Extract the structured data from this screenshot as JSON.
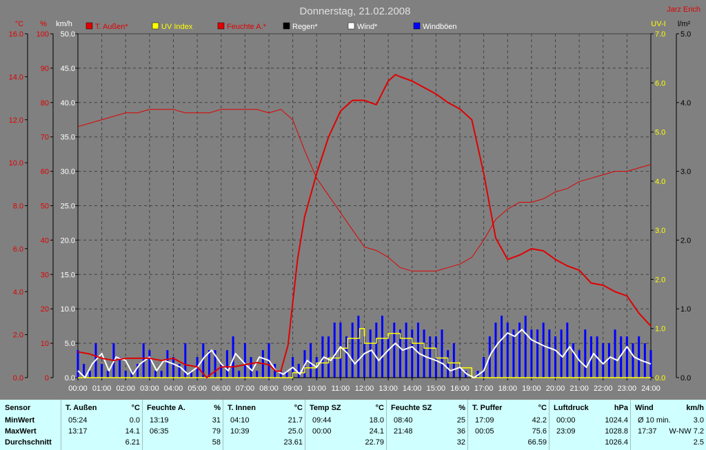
{
  "title": "Donnerstag, 21.02.2008",
  "author": "Jarz Erich",
  "legend": [
    {
      "label": "T. Außen*",
      "box": "#e00000",
      "color": "#e00000"
    },
    {
      "label": "UV Index",
      "box": "#ffff00",
      "color": "#ffff00"
    },
    {
      "label": "Feuchte A.*",
      "box": "#e00000",
      "color": "#e00000"
    },
    {
      "label": "Regen*",
      "box": "#000000",
      "color": "#ffffff"
    },
    {
      "label": "Wind*",
      "box": "#ffffff",
      "color": "#ffffff"
    },
    {
      "label": "Windböen",
      "box": "#0000ff",
      "color": "#ffffff"
    }
  ],
  "colors": {
    "background": "#808080",
    "plot": "#808080",
    "grid": "#404040",
    "temperature": "#e00000",
    "humidity": "#e00000",
    "uv": "#ffff00",
    "wind": "#ffffff",
    "gust": "#0000ff",
    "rain": "#000000",
    "stats_bg": "#cfffff"
  },
  "chart_data": {
    "type": "line",
    "title": "Donnerstag, 21.02.2008",
    "grid": true,
    "legend_position": "top",
    "x_ticks": [
      "00:00",
      "01:00",
      "02:00",
      "03:00",
      "04:00",
      "05:00",
      "06:00",
      "07:00",
      "08:00",
      "09:00",
      "10:00",
      "11:00",
      "12:00",
      "13:00",
      "14:00",
      "15:00",
      "16:00",
      "17:00",
      "18:00",
      "19:00",
      "20:00",
      "21:00",
      "22:00",
      "23:00",
      "24:00"
    ],
    "xlim": [
      0,
      24
    ],
    "axes": {
      "temp_c": {
        "label": "°C",
        "side": "left",
        "range": [
          0,
          16
        ],
        "ticks": [
          "0.0",
          "2.0",
          "4.0",
          "6.0",
          "8.0",
          "10.0",
          "12.0",
          "14.0",
          "16.0"
        ],
        "color": "#e00000"
      },
      "percent": {
        "label": "%",
        "side": "left",
        "range": [
          0,
          100
        ],
        "ticks": [
          "0",
          "10",
          "20",
          "30",
          "40",
          "50",
          "60",
          "70",
          "80",
          "90",
          "100"
        ],
        "color": "#e00000"
      },
      "kmh": {
        "label": "km/h",
        "side": "left",
        "range": [
          0,
          50
        ],
        "ticks": [
          "0.0",
          "5.0",
          "10.0",
          "15.0",
          "20.0",
          "25.0",
          "30.0",
          "35.0",
          "40.0",
          "45.0",
          "50.0"
        ],
        "color": "#ffffff"
      },
      "uv": {
        "label": "UV-I",
        "side": "right",
        "range": [
          0,
          7
        ],
        "ticks": [
          "0.0",
          "1.0",
          "2.0",
          "3.0",
          "4.0",
          "5.0",
          "6.0",
          "7.0"
        ],
        "color": "#ffff00"
      },
      "rain": {
        "label": "l/m²",
        "side": "right",
        "range": [
          0,
          5
        ],
        "ticks": [
          "0.0",
          "1.0",
          "2.0",
          "3.0",
          "4.0",
          "5.0"
        ],
        "color": "#000000"
      }
    },
    "series": [
      {
        "name": "T. Außen*",
        "axis": "temp_c",
        "color": "#e00000",
        "width": 2,
        "x": [
          0,
          0.5,
          1,
          1.5,
          2,
          2.5,
          3,
          3.5,
          4,
          4.5,
          5,
          5.4,
          5.5,
          6,
          6.5,
          7,
          7.5,
          8,
          8.3,
          8.5,
          8.8,
          9,
          9.2,
          9.5,
          10,
          10.5,
          11,
          11.5,
          12,
          12.5,
          13,
          13.3,
          13.5,
          14,
          14.5,
          15,
          15.5,
          16,
          16.5,
          17,
          17.5,
          18,
          18.5,
          19,
          19.5,
          20,
          20.5,
          21,
          21.5,
          22,
          22.5,
          23,
          23.5,
          24
        ],
        "y": [
          1.2,
          1.1,
          0.9,
          0.8,
          0.9,
          0.9,
          0.9,
          0.8,
          0.9,
          0.6,
          0.5,
          0.0,
          0.1,
          0.5,
          0.5,
          0.6,
          0.7,
          0.6,
          0.3,
          0.3,
          1.5,
          3.5,
          5.5,
          7.5,
          9.5,
          11.2,
          12.4,
          12.9,
          12.9,
          12.7,
          13.8,
          14.1,
          14.0,
          13.8,
          13.5,
          13.2,
          12.8,
          12.5,
          12.0,
          9.5,
          6.5,
          5.5,
          5.7,
          6.0,
          5.9,
          5.5,
          5.2,
          5.0,
          4.4,
          4.3,
          4.0,
          3.8,
          3.0,
          2.4
        ]
      },
      {
        "name": "Feuchte A.*",
        "axis": "percent",
        "color": "#e00000",
        "width": 1,
        "x": [
          0,
          0.5,
          1,
          1.5,
          2,
          2.5,
          3,
          3.5,
          4,
          4.5,
          5,
          5.5,
          6,
          6.5,
          7,
          7.5,
          8,
          8.5,
          9,
          9.5,
          10,
          10.5,
          11,
          11.5,
          12,
          12.5,
          13,
          13.5,
          14,
          14.5,
          15,
          15.5,
          16,
          16.5,
          17,
          17.5,
          18,
          18.5,
          19,
          19.5,
          20,
          20.5,
          21,
          21.5,
          22,
          22.5,
          23,
          23.5,
          24
        ],
        "y": [
          73,
          74,
          75,
          76,
          77,
          77,
          78,
          78,
          78,
          77,
          77,
          77,
          78,
          78,
          78,
          78,
          77,
          78,
          75,
          66,
          58,
          53,
          48,
          43,
          38,
          37,
          35,
          32,
          31,
          31,
          31,
          32,
          33,
          35,
          40,
          46,
          49,
          51,
          51,
          52,
          54,
          55,
          57,
          58,
          59,
          60,
          60,
          61,
          62
        ]
      },
      {
        "name": "UV Index",
        "axis": "uv",
        "color": "#ffff00",
        "width": 1.5,
        "step": true,
        "x": [
          0,
          8.7,
          9,
          9.5,
          10,
          10.5,
          11,
          11.3,
          11.8,
          12,
          12.5,
          13,
          13.5,
          14,
          14.5,
          15,
          15.5,
          16,
          16.5,
          17,
          24
        ],
        "y": [
          0,
          0,
          0.1,
          0.2,
          0.3,
          0.4,
          0.6,
          0.8,
          1.0,
          0.7,
          0.8,
          0.9,
          0.8,
          0.7,
          0.6,
          0.4,
          0.3,
          0.2,
          0.0,
          0.0,
          0.0
        ]
      },
      {
        "name": "Wind*",
        "axis": "kmh",
        "color": "#ffffff",
        "width": 2,
        "x": [
          0,
          0.3,
          0.6,
          1,
          1.3,
          1.6,
          2,
          2.3,
          2.6,
          3,
          3.3,
          3.6,
          4,
          4.3,
          4.6,
          5,
          5.3,
          5.6,
          6,
          6.3,
          6.6,
          7,
          7.3,
          7.6,
          8,
          8.3,
          8.6,
          9,
          9.3,
          9.6,
          10,
          10.3,
          10.6,
          11,
          11.3,
          11.6,
          12,
          12.3,
          12.6,
          13,
          13.3,
          13.6,
          14,
          14.3,
          14.6,
          15,
          15.3,
          15.6,
          16,
          16.3,
          16.6,
          17,
          17.3,
          17.6,
          18,
          18.3,
          18.6,
          19,
          19.3,
          19.6,
          20,
          20.3,
          20.6,
          21,
          21.3,
          21.6,
          22,
          22.3,
          22.6,
          23,
          23.3,
          23.6,
          24
        ],
        "y": [
          1,
          0,
          2,
          3.5,
          1,
          3,
          2.5,
          0.5,
          2,
          3,
          1,
          2.5,
          2,
          1.5,
          0.5,
          1.5,
          3,
          4,
          2,
          1,
          3.5,
          2,
          1,
          3,
          2.5,
          1,
          0.5,
          1.5,
          0.5,
          2.5,
          1.5,
          3,
          2.5,
          4.5,
          3.5,
          2,
          3.5,
          4,
          2.5,
          4,
          5,
          4,
          4.5,
          3.5,
          3,
          2.5,
          2,
          1,
          1.5,
          0.5,
          0,
          1,
          3.5,
          5,
          6.5,
          6,
          7,
          5.5,
          5,
          4.5,
          4,
          3,
          4.5,
          2.5,
          1.5,
          3.5,
          2,
          3,
          2.5,
          4.5,
          3,
          2.5,
          2
        ]
      },
      {
        "name": "Windböen",
        "axis": "kmh",
        "color": "#0000ff",
        "width": 1,
        "bars": true,
        "x": [
          0,
          0.25,
          0.5,
          0.75,
          1,
          1.25,
          1.5,
          1.75,
          2,
          2.25,
          2.5,
          2.75,
          3,
          3.25,
          3.5,
          3.75,
          4,
          4.25,
          4.5,
          4.75,
          5,
          5.25,
          5.5,
          5.75,
          6,
          6.25,
          6.5,
          6.75,
          7,
          7.25,
          7.5,
          7.75,
          8,
          8.25,
          8.5,
          8.75,
          9,
          9.25,
          9.5,
          9.75,
          10,
          10.25,
          10.5,
          10.75,
          11,
          11.25,
          11.5,
          11.75,
          12,
          12.25,
          12.5,
          12.75,
          13,
          13.25,
          13.5,
          13.75,
          14,
          14.25,
          14.5,
          14.75,
          15,
          15.25,
          15.5,
          15.75,
          16,
          16.25,
          16.5,
          16.75,
          17,
          17.25,
          17.5,
          17.75,
          18,
          18.25,
          18.5,
          18.75,
          19,
          19.25,
          19.5,
          19.75,
          20,
          20.25,
          20.5,
          20.75,
          21,
          21.25,
          21.5,
          21.75,
          22,
          22.25,
          22.5,
          22.75,
          23,
          23.25,
          23.5,
          23.75,
          24
        ],
        "y": [
          4,
          2,
          1,
          5,
          2,
          1,
          5,
          3,
          1,
          1,
          2,
          5,
          4,
          1,
          1,
          4,
          3,
          2,
          5,
          1,
          3,
          5,
          4,
          4,
          2,
          4,
          6,
          1,
          5,
          3,
          1,
          4,
          5,
          2,
          1,
          1,
          3,
          2,
          4,
          5,
          3,
          6,
          6,
          8,
          8,
          6,
          8,
          9,
          6,
          7,
          8,
          9,
          6,
          8,
          7,
          8,
          7,
          8,
          7,
          6,
          6,
          7,
          4,
          5,
          2,
          1,
          0,
          1,
          3,
          6,
          8,
          9,
          8,
          7,
          8,
          9,
          7,
          7,
          8,
          7,
          6,
          7,
          8,
          5,
          4,
          7,
          6,
          6,
          5,
          5,
          7,
          6,
          6,
          5,
          6,
          5,
          4
        ]
      },
      {
        "name": "Regen*",
        "axis": "rain",
        "color": "#000000",
        "width": 1,
        "x": [
          0,
          24
        ],
        "y": [
          0,
          0
        ]
      }
    ]
  },
  "stats": {
    "labels": {
      "sensor": "Sensor",
      "min": "MinWert",
      "max": "MaxWert",
      "avg": "Durchschnitt"
    },
    "columns": [
      {
        "name": "T. Außen",
        "unit": "°C",
        "min_time": "05:24",
        "min": "0.0",
        "max_time": "13:17",
        "max": "14.1",
        "avg": "6.21"
      },
      {
        "name": "Feuchte A.",
        "unit": "%",
        "min_time": "13:19",
        "min": "31",
        "max_time": "06:35",
        "max": "79",
        "avg": "58"
      },
      {
        "name": "T. Innen",
        "unit": "°C",
        "min_time": "04:10",
        "min": "21.7",
        "max_time": "10:39",
        "max": "25.0",
        "avg": "23.61"
      },
      {
        "name": "Temp SZ",
        "unit": "°C",
        "min_time": "09:44",
        "min": "18.0",
        "max_time": "00:00",
        "max": "24.1",
        "avg": "22.79"
      },
      {
        "name": "Feuchte SZ",
        "unit": "%",
        "min_time": "08:40",
        "min": "25",
        "max_time": "21:48",
        "max": "36",
        "avg": "32"
      },
      {
        "name": "T. Puffer",
        "unit": "°C",
        "min_time": "17:09",
        "min": "42.2",
        "max_time": "00:05",
        "max": "75.6",
        "avg": "66.59"
      },
      {
        "name": "Luftdruck",
        "unit": "hPa",
        "min_time": "00:00",
        "min": "1024.4",
        "max_time": "23:09",
        "max": "1028.8",
        "avg": "1026.4"
      },
      {
        "name": "Wind",
        "unit": "km/h",
        "min_time": "Ø 10 min.",
        "min": "3.0",
        "max_time": "17:37",
        "max": "W-NW 7.2",
        "avg": "2.5"
      }
    ]
  }
}
